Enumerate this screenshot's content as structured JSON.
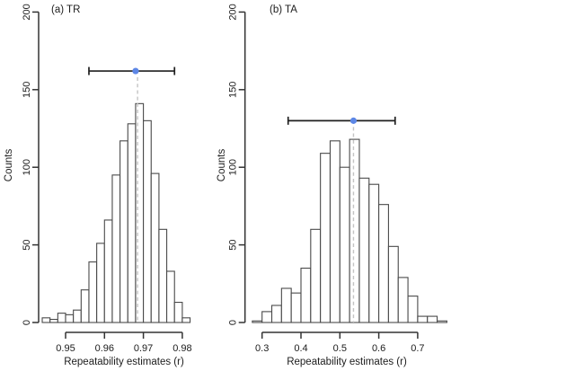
{
  "figure_background": "#ffffff",
  "colors": {
    "bar_fill": "#ffffff",
    "bar_stroke": "#4a4a4a",
    "axis": "#333333",
    "text": "#1b1b1b",
    "dashed_line": "#c4c4c4",
    "ci_line": "#1f1f1f",
    "ci_point": "#5D87E6"
  },
  "chart_data": [
    {
      "type": "bar",
      "subtype": "histogram",
      "title": "(a) TR",
      "xlabel": "Repeatability estimates (r)",
      "ylabel": "Counts",
      "bin_start": 0.944,
      "bin_width": 0.002,
      "counts": [
        3,
        2,
        6,
        5,
        8,
        21,
        39,
        51,
        66,
        95,
        117,
        128,
        141,
        130,
        96,
        60,
        33,
        13,
        3
      ],
      "x_tick_values": [
        0.95,
        0.96,
        0.97,
        0.98
      ],
      "x_tick_labels": [
        "0.95",
        "0.96",
        "0.97",
        "0.98"
      ],
      "y_tick_values": [
        0,
        50,
        100,
        150,
        200
      ],
      "y_tick_labels": [
        "0",
        "50",
        "100",
        "150",
        "200"
      ],
      "ylim": [
        0,
        200
      ],
      "grid": "off",
      "ci": {
        "lower": 0.956,
        "upper": 0.978,
        "estimate": 0.968,
        "display_height_counts": 162
      },
      "mean_dashed_x": 0.9685
    },
    {
      "type": "bar",
      "subtype": "histogram",
      "title": "(b) TA",
      "xlabel": "Repeatability estimates (r)",
      "ylabel": "Counts",
      "bin_start": 0.275,
      "bin_width": 0.025,
      "counts": [
        1,
        7,
        11,
        22,
        19,
        35,
        60,
        109,
        117,
        100,
        118,
        93,
        89,
        76,
        49,
        29,
        17,
        4,
        4,
        1
      ],
      "x_tick_values": [
        0.3,
        0.4,
        0.5,
        0.6,
        0.7
      ],
      "x_tick_labels": [
        "0.3",
        "0.4",
        "0.5",
        "0.6",
        "0.7"
      ],
      "y_tick_values": [
        0,
        50,
        100,
        150,
        200
      ],
      "y_tick_labels": [
        "0",
        "50",
        "100",
        "150",
        "200"
      ],
      "ylim": [
        0,
        200
      ],
      "grid": "off",
      "ci": {
        "lower": 0.367,
        "upper": 0.642,
        "estimate": 0.535,
        "display_height_counts": 130
      },
      "mean_dashed_x": 0.535
    }
  ]
}
